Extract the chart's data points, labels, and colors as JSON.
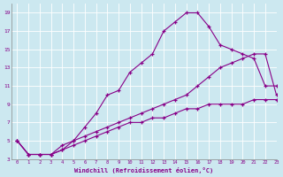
{
  "xlabel": "Windchill (Refroidissement éolien,°C)",
  "bg_color": "#cce8f0",
  "line_color": "#880088",
  "xlim": [
    -0.5,
    23
  ],
  "ylim": [
    3,
    20
  ],
  "xticks": [
    0,
    1,
    2,
    3,
    4,
    5,
    6,
    7,
    8,
    9,
    10,
    11,
    12,
    13,
    14,
    15,
    16,
    17,
    18,
    19,
    20,
    21,
    22,
    23
  ],
  "yticks": [
    3,
    5,
    7,
    9,
    11,
    13,
    15,
    17,
    19
  ],
  "line1_x": [
    0,
    1,
    2,
    3,
    4,
    5,
    6,
    7,
    8,
    9,
    10,
    11,
    12,
    13,
    14,
    15,
    16,
    17,
    18,
    19,
    20,
    21,
    22,
    23
  ],
  "line1_y": [
    5,
    3.5,
    3.5,
    3.5,
    4,
    5,
    6.5,
    8,
    10,
    10.5,
    12.5,
    13.5,
    14.5,
    17,
    18,
    19,
    19,
    17.5,
    15.5,
    15,
    14.5,
    14,
    11,
    11
  ],
  "line2_x": [
    0,
    1,
    2,
    3,
    4,
    5,
    6,
    7,
    8,
    9,
    10,
    11,
    12,
    13,
    14,
    15,
    16,
    17,
    18,
    19,
    20,
    21,
    22,
    23
  ],
  "line2_y": [
    5,
    3.5,
    3.5,
    3.5,
    4.5,
    5,
    5.5,
    6,
    6.5,
    7,
    7.5,
    8,
    8.5,
    9,
    9.5,
    10,
    11,
    12,
    13,
    13.5,
    14,
    14.5,
    14.5,
    10
  ],
  "line3_x": [
    0,
    1,
    2,
    3,
    4,
    5,
    6,
    7,
    8,
    9,
    10,
    11,
    12,
    13,
    14,
    15,
    16,
    17,
    18,
    19,
    20,
    21,
    22,
    23
  ],
  "line3_y": [
    5,
    3.5,
    3.5,
    3.5,
    4,
    4.5,
    5,
    5.5,
    6,
    6.5,
    7,
    7,
    7.5,
    7.5,
    8,
    8.5,
    8.5,
    9,
    9,
    9,
    9,
    9.5,
    9.5,
    9.5
  ]
}
